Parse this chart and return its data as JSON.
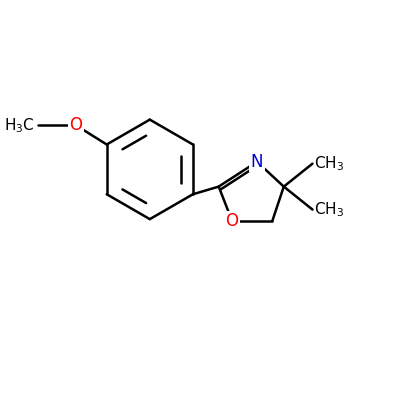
{
  "background_color": "#ffffff",
  "bond_color": "#000000",
  "o_color": "#ff0000",
  "n_color": "#0000cc",
  "bond_width": 1.8,
  "figsize": [
    4.0,
    4.0
  ],
  "dpi": 100,
  "xlim": [
    0,
    10
  ],
  "ylim": [
    0,
    10
  ]
}
